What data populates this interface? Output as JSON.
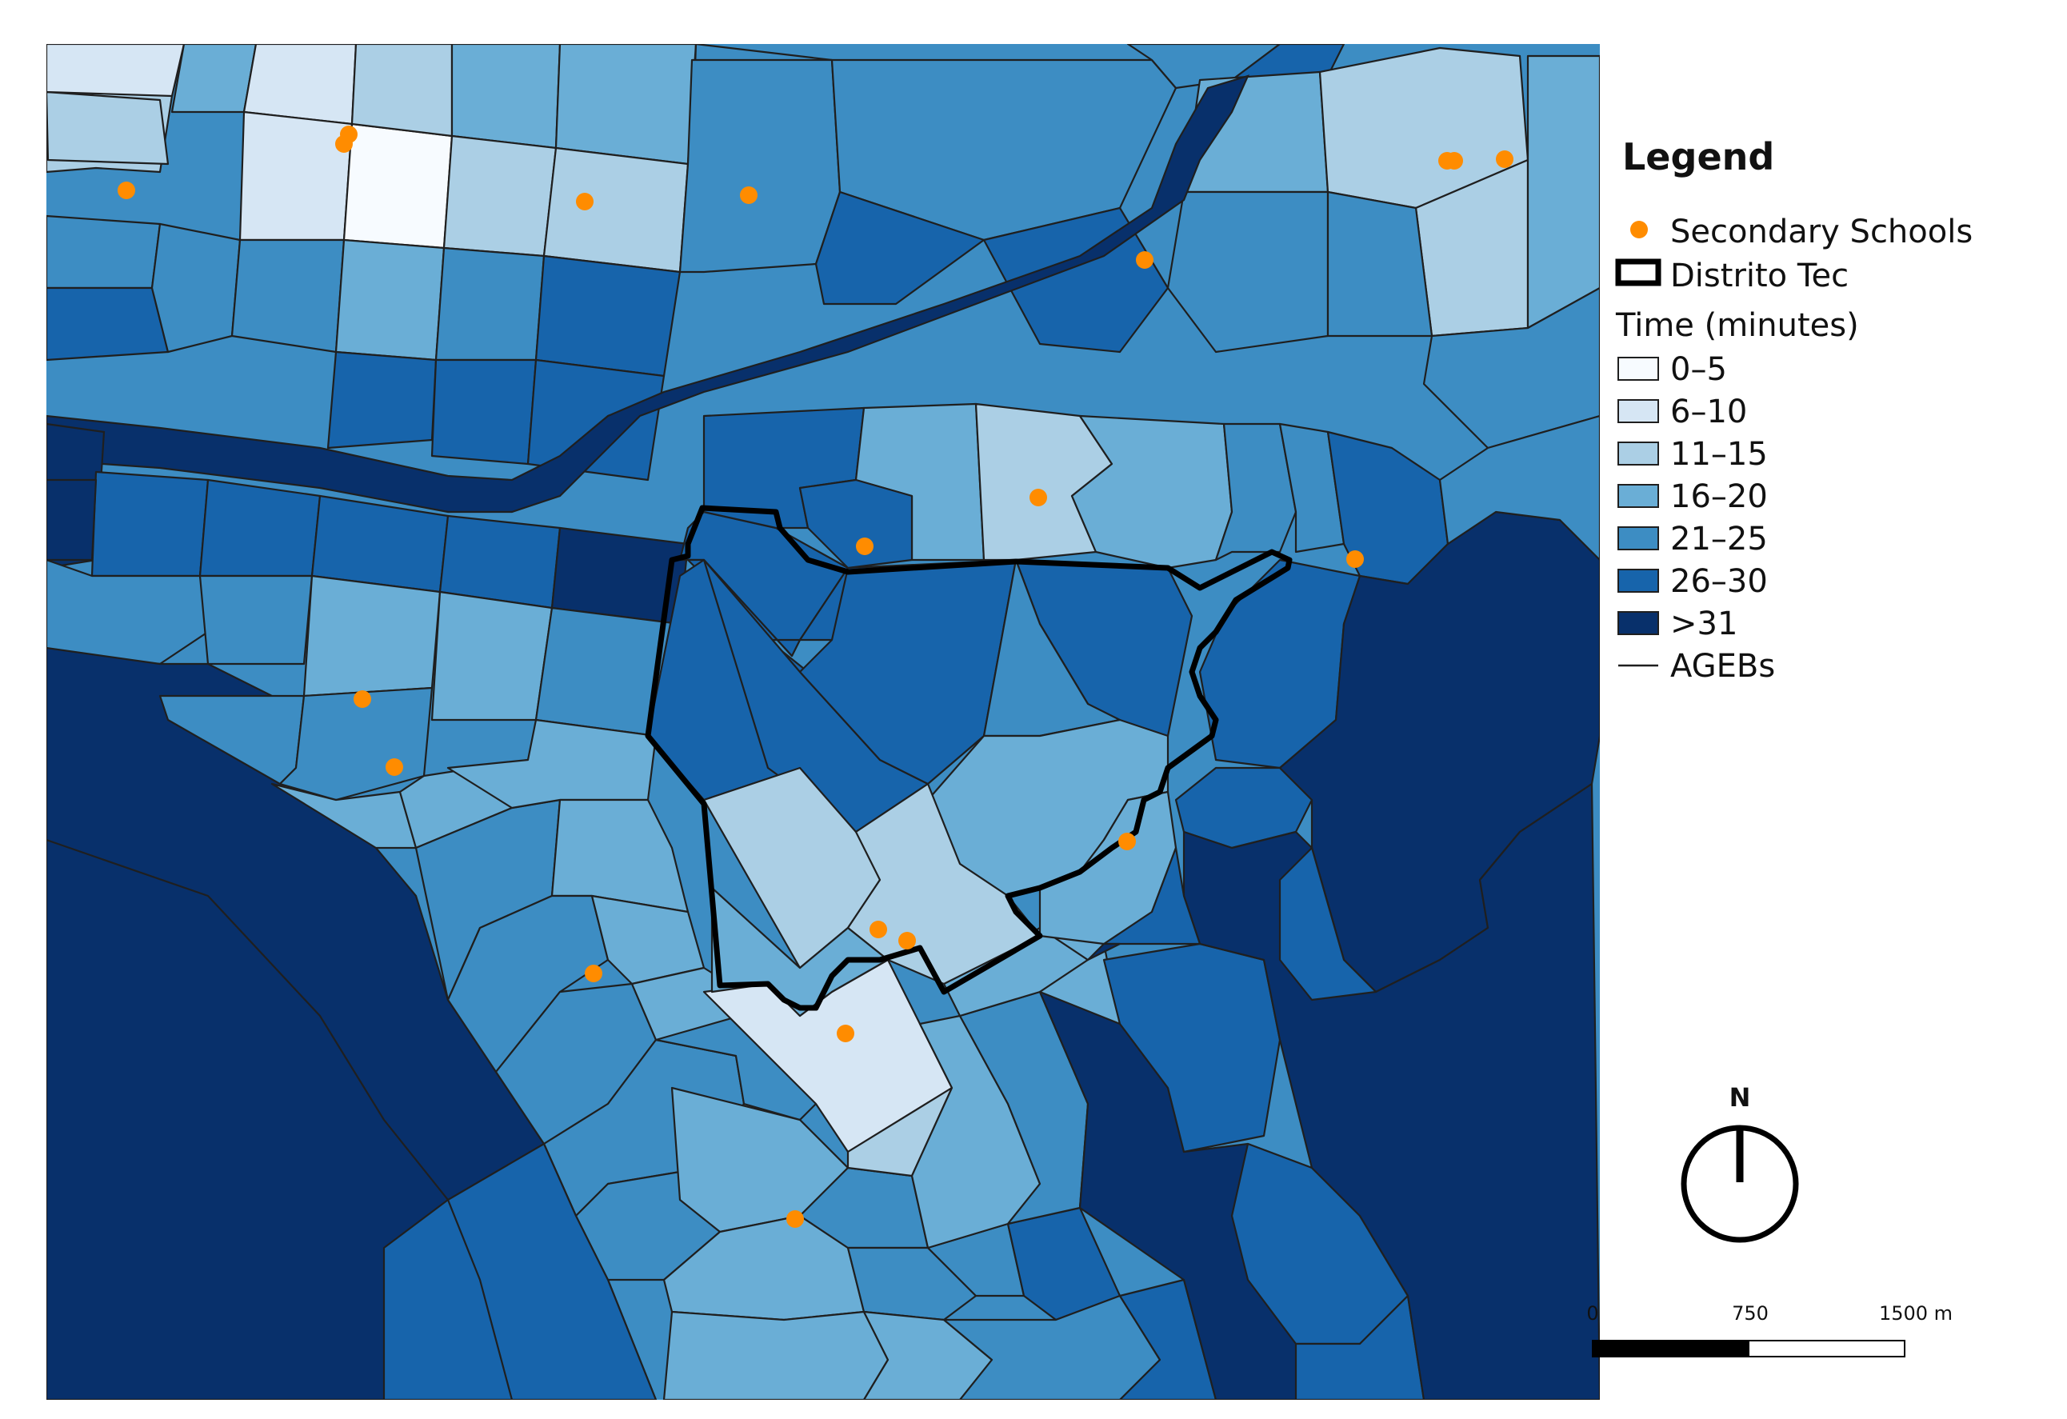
{
  "legend": {
    "title": "Legend",
    "schools_label": "Secondary Schools",
    "district_label": "Distrito Tec",
    "time_title": "Time (minutes)",
    "classes": [
      {
        "label": "0–5",
        "color": "#f7fbff"
      },
      {
        "label": "6–10",
        "color": "#d6e6f4"
      },
      {
        "label": "11–15",
        "color": "#abcfe5"
      },
      {
        "label": "16–20",
        "color": "#6aaed6"
      },
      {
        "label": "21–25",
        "color": "#3d8dc3"
      },
      {
        "label": "26–30",
        "color": "#1764ab"
      },
      {
        "label": ">31",
        "color": "#08306b"
      }
    ],
    "ageb_label": "AGEBs"
  },
  "north_arrow": {
    "label": "N"
  },
  "scale_bar": {
    "labels": [
      "0",
      "750",
      "1500 m"
    ]
  },
  "colors": {
    "school": "#ff8c00",
    "district_outline": "#000000",
    "ageb_line": "#1f1f1f"
  }
}
